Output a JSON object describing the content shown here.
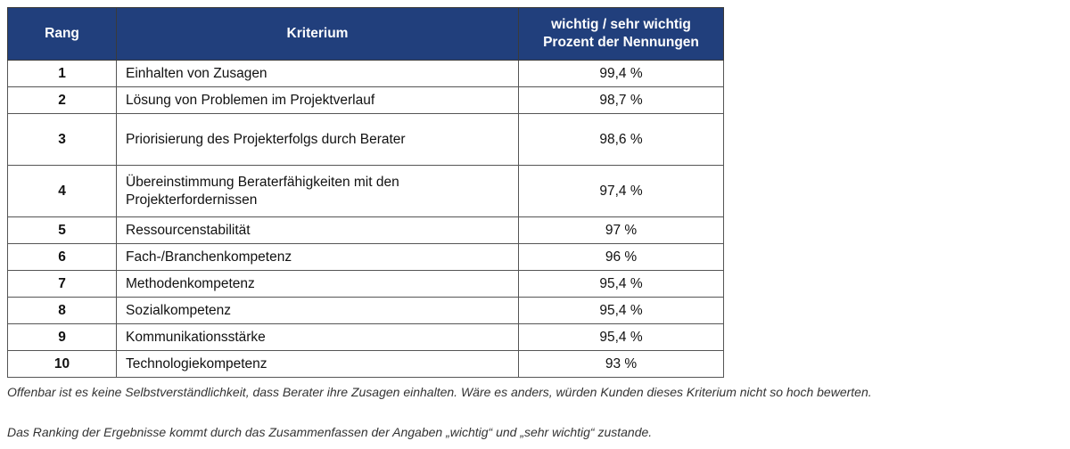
{
  "table": {
    "header": [
      "Rang",
      "Kriterium",
      [
        "wichtig / sehr wichtig",
        "Prozent der Nennungen"
      ]
    ],
    "rows": [
      [
        "1",
        "Einhalten von Zusagen",
        "99,4 %"
      ],
      [
        "2",
        "Lösung von Problemen im Projektverlauf",
        "98,7 %"
      ],
      [
        "3",
        "Priorisierung des Projekterfolgs durch Berater",
        "98,6 %"
      ],
      [
        "4",
        "Übereinstimmung Beraterfähigkeiten mit den Projekterfordernissen",
        "97,4 %"
      ],
      [
        "5",
        "Ressourcenstabilität",
        "97 %"
      ],
      [
        "6",
        "Fach-/Branchenkompetenz",
        "96 %"
      ],
      [
        "7",
        "Methodenkompetenz",
        "95,4 %"
      ],
      [
        "8",
        "Sozialkompetenz",
        "95,4 %"
      ],
      [
        "9",
        "Kommunikationsstärke",
        "95,4 %"
      ],
      [
        "10",
        "Technologiekompetenz",
        "93 %"
      ]
    ]
  },
  "notes": [
    "Offenbar ist es keine Selbstverständlichkeit, dass Berater ihre Zusagen einhalten. Wäre es anders, würden Kunden dieses Kriterium nicht so hoch bewerten.",
    "Das Ranking der Ergebnisse kommt durch das Zusammenfassen der Angaben „wichtig“ und „sehr wichtig“ zustande."
  ]
}
